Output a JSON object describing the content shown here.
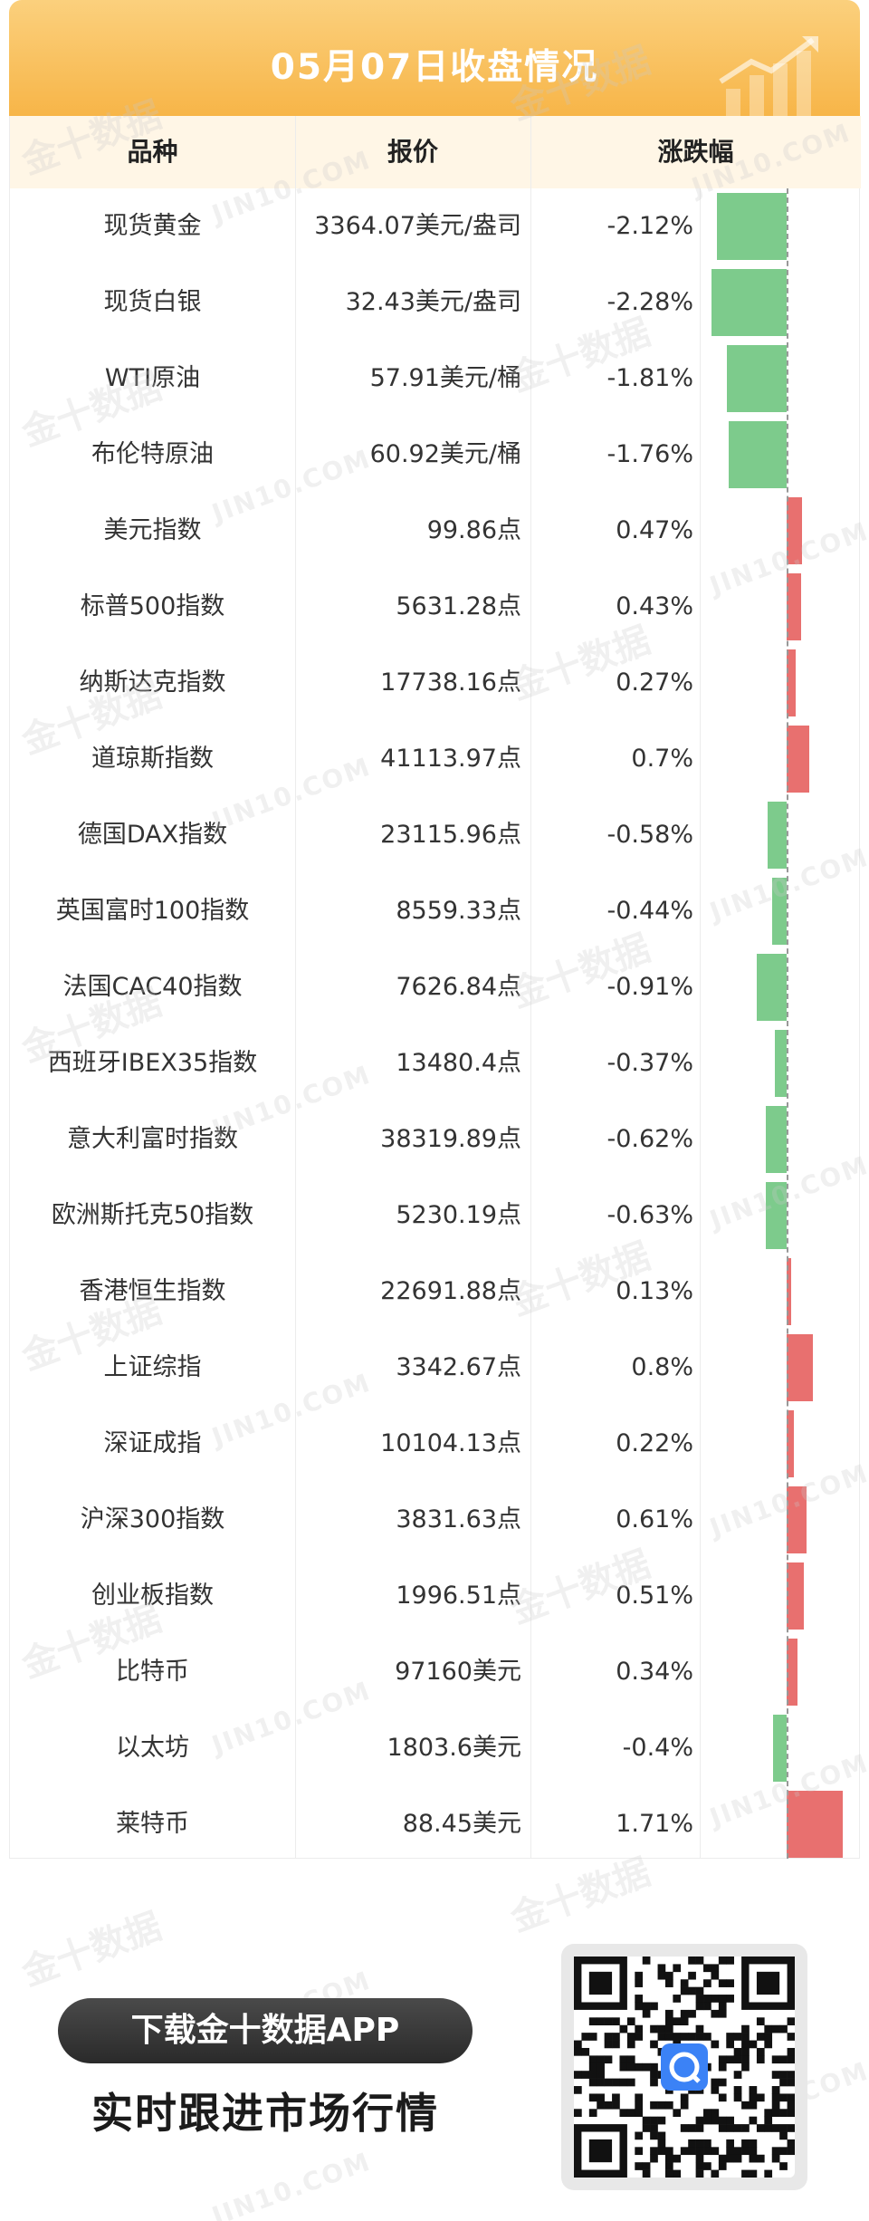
{
  "header": {
    "title": "05月07日收盘情况"
  },
  "table": {
    "headers": [
      "品种",
      "报价",
      "涨跌幅"
    ],
    "rows": [
      {
        "name": "现货黄金",
        "price": "3364.07美元/盎司",
        "change": "-2.12%"
      },
      {
        "name": "现货白银",
        "price": "32.43美元/盎司",
        "change": "-2.28%"
      },
      {
        "name": "WTI原油",
        "price": "57.91美元/桶",
        "change": "-1.81%"
      },
      {
        "name": "布伦特原油",
        "price": "60.92美元/桶",
        "change": "-1.76%"
      },
      {
        "name": "美元指数",
        "price": "99.86点",
        "change": "0.47%"
      },
      {
        "name": "标普500指数",
        "price": "5631.28点",
        "change": "0.43%"
      },
      {
        "name": "纳斯达克指数",
        "price": "17738.16点",
        "change": "0.27%"
      },
      {
        "name": "道琼斯指数",
        "price": "41113.97点",
        "change": "0.7%"
      },
      {
        "name": "德国DAX指数",
        "price": "23115.96点",
        "change": "-0.58%"
      },
      {
        "name": "英国富时100指数",
        "price": "8559.33点",
        "change": "-0.44%"
      },
      {
        "name": "法国CAC40指数",
        "price": "7626.84点",
        "change": "-0.91%"
      },
      {
        "name": "西班牙IBEX35指数",
        "price": "13480.4点",
        "change": "-0.37%"
      },
      {
        "name": "意大利富时指数",
        "price": "38319.89点",
        "change": "-0.62%"
      },
      {
        "name": "欧洲斯托克50指数",
        "price": "5230.19点",
        "change": "-0.63%"
      },
      {
        "name": "香港恒生指数",
        "price": "22691.88点",
        "change": "0.13%"
      },
      {
        "name": "上证综指",
        "price": "3342.67点",
        "change": "0.8%"
      },
      {
        "name": "深证成指",
        "price": "10104.13点",
        "change": "0.22%"
      },
      {
        "name": "沪深300指数",
        "price": "3831.63点",
        "change": "0.61%"
      },
      {
        "name": "创业板指数",
        "price": "1996.51点",
        "change": "0.51%"
      },
      {
        "name": "比特币",
        "price": "97160美元",
        "change": "0.34%"
      },
      {
        "name": "以太坊",
        "price": "1803.6美元",
        "change": "-0.4%"
      },
      {
        "name": "莱特币",
        "price": "88.45美元",
        "change": "1.71%"
      }
    ]
  },
  "chart_data": {
    "type": "bar",
    "orientation": "horizontal",
    "categories": [
      "现货黄金",
      "现货白银",
      "WTI原油",
      "布伦特原油",
      "美元指数",
      "标普500指数",
      "纳斯达克指数",
      "道琼斯指数",
      "德国DAX指数",
      "英国富时100指数",
      "法国CAC40指数",
      "西班牙IBEX35指数",
      "意大利富时指数",
      "欧洲斯托克50指数",
      "香港恒生指数",
      "上证综指",
      "深证成指",
      "沪深300指数",
      "创业板指数",
      "比特币",
      "以太坊",
      "莱特币"
    ],
    "values": [
      -2.12,
      -2.28,
      -1.81,
      -1.76,
      0.47,
      0.43,
      0.27,
      0.7,
      -0.58,
      -0.44,
      -0.91,
      -0.37,
      -0.62,
      -0.63,
      0.13,
      0.8,
      0.22,
      0.61,
      0.51,
      0.34,
      -0.4,
      1.71
    ],
    "unit": "%",
    "colors": {
      "up": "#e8706f",
      "down": "#7dcb8c",
      "header": "#f7b548"
    }
  },
  "watermarks": {
    "cn": "金十数据",
    "en": "JIN10.COM"
  },
  "promo": {
    "button_label": "下载金十数据APP",
    "subtitle": "实时跟进市场行情"
  },
  "qr": {
    "icon": "qr-code-icon"
  }
}
